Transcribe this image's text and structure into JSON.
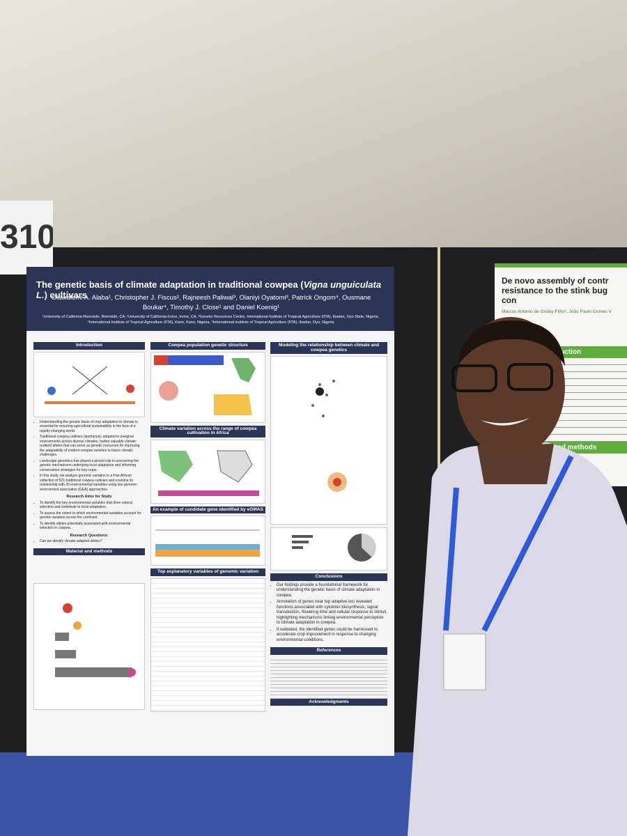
{
  "booth_number": "310",
  "poster": {
    "title_start": "The genetic basis of climate adaptation in traditional cowpea (",
    "title_species": "Vigna unguiculata L.",
    "title_end": ") cultivars",
    "authors": "Oluwafemi A. Alaba¹, Christopher J. Fiscus², Rajneesh Paliwal³, Olaniyi Oyatomi³, Patrick Ongom⁴, Ousmane Boukar⁴, Timothy J. Close¹ and Daniel Koenig¹",
    "affiliations": "¹University of California-Riverside, Riverside, CA, ²University of California-Irvine, Irvine, CA, ³Genetic Resources Centre, International Institute of Tropical Agriculture (IITA), Ibadan, Oyo State, Nigeria, ⁴International Institute of Tropical Agriculture (IITA), Kano, Kano, Nigeria, ⁵International Institute of Tropical Agriculture (IITA), Ibadan, Oyo, Nigeria",
    "introduction": {
      "heading": "Introduction",
      "bullets": [
        "Understanding the genetic basis of crop adaptation to climate is essential for ensuring agricultural sustainability in the face of a rapidly changing world.",
        "Traditional cowpea cultivars (landraces), adapted to marginal environments across diverse climates, harbor valuable climate-resilient alleles that can serve as genetic resources for improving the adaptability of modern cowpea varieties to future climatic challenges.",
        "Landscape genomics has played a pivotal role in uncovering the genetic mechanisms underlying local adaptation and informing conservation strategies for key crops.",
        "In this study, we analyze genomic variation in a Pan-African collection of 821 traditional cowpea cultivars and examine its relationship with 30 environmental variables using two genome-environment association (GEA) approaches."
      ],
      "aims_heading": "Research Aims for Study",
      "aims": [
        "To identify the key environmental variables that drive natural selection and contribute to local adaptation.",
        "To assess the extent to which environmental variables account for genetic variation across the continent.",
        "To identify alleles potentially associated with environmental selection in cowpea."
      ],
      "questions_heading": "Research Questions:",
      "questions": [
        "Can we identify climate-adapted alleles?"
      ]
    },
    "methods_heading": "Material and methods",
    "structure_heading": "Cowpea population genetic structure",
    "climate_heading": "Climate variation across the range of cowpea cultivation in Africa",
    "egwas_heading": "An example of candidate gene identified by eGWAS",
    "top_vars_heading": "Top explanatory variables of genomic variation",
    "modeling_heading": "Modeling the relationship between climate and cowpea genetics",
    "conclusions": {
      "heading": "Conclusions",
      "bullets": [
        "Our findings provide a foundational framework for understanding the genetic basis of climate adaptation in cowpea.",
        "Annotation of genes near top adaptive loci revealed functions associated with cytokinin biosynthesis, signal transduction, flowering time and cellular response to stimuli, highlighting mechanisms linking environmental perception to climate adaptation in cowpea.",
        "If validated, the identified genes could be harnessed to accelerate crop improvement in response to changing environmental conditions."
      ]
    },
    "references_heading": "References",
    "acknowledgments_heading": "Acknowledgments"
  },
  "neighbor_poster": {
    "title_line1": "De novo assembly of contr",
    "title_line2": "resistance to the stink bug con",
    "authors": "Marcos Antonio de Godoy Filho¹, João Paulo Gomes V",
    "introduction_heading": "Introduction",
    "methods_heading": "Material and methods"
  }
}
